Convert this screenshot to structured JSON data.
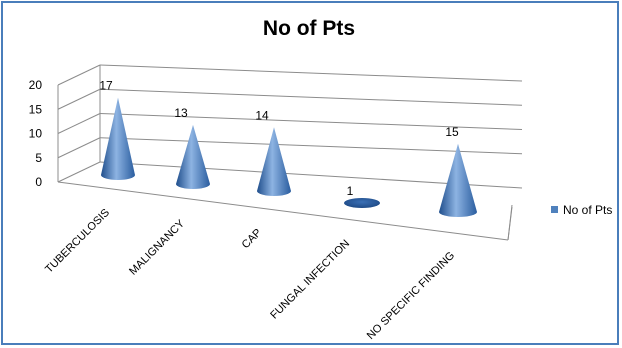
{
  "chart_data": {
    "type": "bar",
    "shape": "3d-cone",
    "title": "No of Pts",
    "categories": [
      "TUBERCULOSIS",
      "MALIGNANCY",
      "CAP",
      "FUNGAL INFECTION",
      "NO SPECIFIC FINDING"
    ],
    "series": [
      {
        "name": "No of Pts",
        "values": [
          17,
          13,
          14,
          1,
          15
        ],
        "color": "#4f81bd"
      }
    ],
    "yticks": [
      0,
      5,
      10,
      15,
      20
    ],
    "ylim": [
      0,
      20
    ],
    "grid": true,
    "data_labels": true,
    "legend_position": "right"
  }
}
